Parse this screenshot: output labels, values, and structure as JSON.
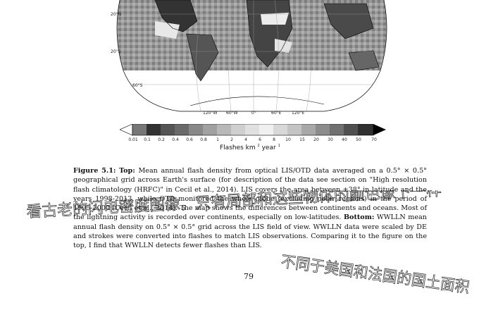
{
  "figure": {
    "lat_labels": [
      "20°N",
      "20°S",
      "60°S"
    ],
    "lon_labels": [
      "120°W",
      "60°W",
      "0°",
      "60°E",
      "120°E"
    ],
    "colorbar": {
      "ticks": [
        "0.01",
        "0.1",
        "0.2",
        "0.4",
        "0.6",
        "0.8",
        "1",
        "2",
        "4",
        "6",
        "8",
        "10",
        "15",
        "20",
        "30",
        "40",
        "50",
        "70"
      ],
      "label_base": "Flashes km",
      "label_exp1": "2",
      "label_mid": " year",
      "label_exp2": "1"
    }
  },
  "caption": {
    "label": "Figure 5.1:",
    "top_label": "Top:",
    "text_part1": "Mean annual flash density from optical LIS/OTD data averaged on a 0.5° × 0.5° geographical grid across Earth's surface (for description of the data see section on \"High resolution flash climatology (HRFC)\" in Cecil et al., 2014). LIS covers the area between ±38° in latitude and the years 1998-2013, while OTD monitored the whole globe (excluding polar regions) in the period of 1995-2000 (Cecil et al., 2014). The map shows the differences between continents and oceans. Most of the lightning activity is recorded over continents, especially on low-latitudes.",
    "bottom_label": "Bottom:",
    "text_part2": "WWLLN mean annual flash density on 0.5° × 0.5° grid across the LIS field of view. WWLLN data were scaled by DE and strokes were converted into flashes to match LIS observations. Comparing it to the figure on the top, I find that WWLLN detects fewer flashes than LIS."
  },
  "page_number": "79",
  "annotation": {
    "line1": "看古老的闪电密度图像，只有局部和这些物体的颜色像下一样",
    "line2": "不同于美国和法国的国土面积"
  }
}
